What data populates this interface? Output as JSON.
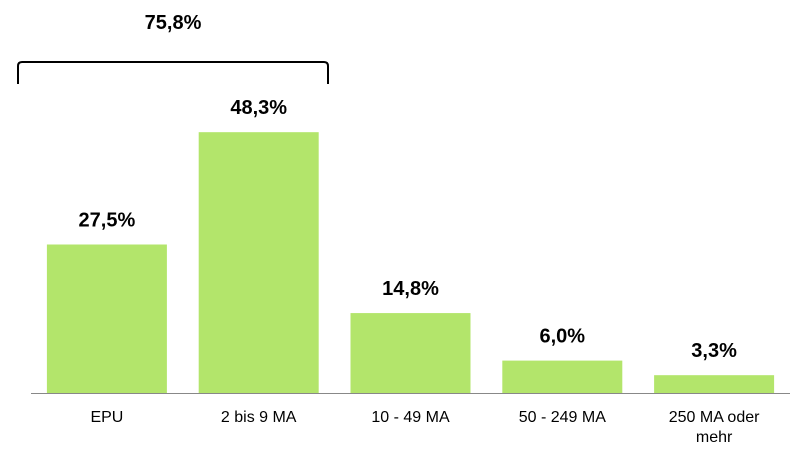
{
  "chart_data": {
    "type": "bar",
    "categories": [
      "EPU",
      "2 bis 9 MA",
      "10 - 49 MA",
      "50 - 249 MA",
      "250 MA oder mehr"
    ],
    "values": [
      27.5,
      48.3,
      14.8,
      6.0,
      3.3
    ],
    "value_labels": [
      "27,5%",
      "48,3%",
      "14,8%",
      "6,0%",
      "3,3%"
    ],
    "color": "#b3e56b",
    "ylim": [
      0,
      55
    ],
    "annotations": [
      {
        "text": "75,8%"
      }
    ]
  }
}
